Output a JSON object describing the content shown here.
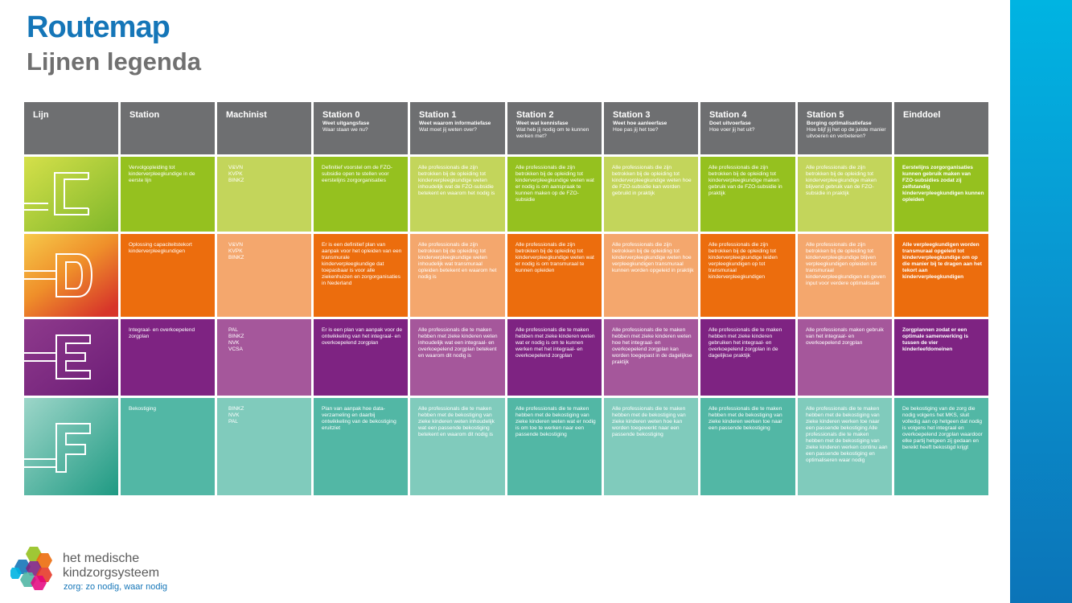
{
  "header": {
    "title": "Routemap",
    "subtitle": "Lijnen legenda"
  },
  "table": {
    "columns": [
      {
        "label": "Lijn"
      },
      {
        "label": "Station"
      },
      {
        "label": "Machinist"
      },
      {
        "label": "Station 0",
        "phase": "Weet uitgangsfase",
        "question": "Waar staan we nu?"
      },
      {
        "label": "Station 1",
        "phase": "Weet waarom informatiefase",
        "question": "Wat moet jij weten over?"
      },
      {
        "label": "Station 2",
        "phase": "Weet wat kennisfase",
        "question": "Wat heb jij nodig om te kunnen werken met?"
      },
      {
        "label": "Station 3",
        "phase": "Weet hoe aanleerfase",
        "question": "Hoe pas jij het toe?"
      },
      {
        "label": "Station 4",
        "phase": "Doet uitvoerfase",
        "question": "Hoe voer jij het uit?"
      },
      {
        "label": "Station 5",
        "phase": "Borging optimalisatiefase",
        "question": "Hoe blijf jij het op de juiste manier uitvoeren en verbeteren?"
      },
      {
        "label": "Einddoel"
      }
    ],
    "rows": [
      {
        "line": "C",
        "colors": {
          "light": "#c3d55b",
          "dark": "#95c11f"
        },
        "station": "Vervolgopleiding tot kinderverpleegkundige in de eerste lijn",
        "machinist": "V&VN\nKVPK\nBINKZ",
        "s0": "Definitief voorstel om de FZO-subsidie open te stellen voor eerstelijns zorgorganisaties",
        "s1": "Alle professionals die zijn betrokken bij de opleiding tot kinderverpleegkundige weten inhoudelijk wat de FZO-subsidie betekent en waarom het nodig is",
        "s2": "Alle professionals die zijn betrokken bij de opleiding tot kinderverpleegkundige weten wat er nodig is om aanspraak te kunnen maken op de FZO-subsidie",
        "s3": "Alle professionals die zijn betrokken bij de opleiding tot kinderverpleegkundige weten hoe de FZO-subsidie kan worden gebruikt in praktijk",
        "s4": "Alle professionals die zijn betrokken bij de opleiding tot kinderverpleegkundige maken gebruik van de FZO-subsidie in praktijk",
        "s5": "Alle professionals die zijn betrokken bij de opleiding tot kinderverpleegkundige maken blijvend gebruik van de FZO-subsidie in praktijk",
        "goal": "Eerstelijns zorgorganisaties kunnen gebruik maken van FZO-subsidies zodat zij zelfstandig kinderverpleegkundigen kunnen opleiden"
      },
      {
        "line": "D",
        "colors": {
          "light": "#f4a76d",
          "dark": "#ec6d0d"
        },
        "station": "Oplossing capaciteitstekort kinderverpleegkundigen",
        "machinist": "V&VN\nKVPK\nBINKZ",
        "s0": "Er is een definitief plan van aanpak voor het opleiden van een transmurale kinderverpleegkundige dat toepasbaar is voor alle ziekenhuizen en zorgorganisaties in Nederland",
        "s1": "Alle professionals die zijn betrokken bij de opleiding tot kinderverpleegkundige weten inhoudelijk wat transmuraal opleiden betekent en waarom het nodig is",
        "s2": "Alle professionals die zijn betrokken bij de opleiding tot kinderverpleegkundige weten wat er nodig is om transmuraal te kunnen opleiden",
        "s3": "Alle professionals die zijn betrokken bij de opleiding tot kinderverpleegkundige weten hoe verpleegkundigen transmuraal kunnen worden opgeleid in praktijk",
        "s4": "Alle professionals die zijn betrokken bij de opleiding tot kinderverpleegkundige leiden verpleegkundigen op tot transmuraal kinderverpleegkundigen",
        "s5": "Alle professionals die zijn betrokken bij de opleiding tot kinderverpleegkundige blijven verpleegkundigen opleiden tot transmuraal kinderverpleegkundigen en geven input voor verdere optimalisatie",
        "goal": "Alle verpleegkundigen worden transmuraal opgeleid tot kinderverpleegkundige om op die manier bij te dragen aan het tekort aan kinderverpleegkundigen"
      },
      {
        "line": "E",
        "colors": {
          "light": "#a5579b",
          "dark": "#7e2382"
        },
        "station": "Integraal- en overkoepelend zorgplan",
        "machinist": "PAL\nBINKZ\nNVK\nVCSA",
        "s0": "Er is een plan van aanpak voor de ontwikkeling van het integraal- en overkoepelend zorgplan",
        "s1": "Alle professionals die te maken hebben met zieke kinderen weten inhoudelijk wat een integraal- en overkoepelend zorgplan betekent en waarom dit nodig is",
        "s2": "Alle professionals die te maken hebben met zieke kinderen weten wat er nodig is om te kunnen werken met het integraal- en overkoepelend zorgplan",
        "s3": "Alle professionals die te maken hebben met zieke kinderen weten hoe het integraal- en overkoepelend zorgplan kan worden toegepast in de dagelijkse praktijk",
        "s4": "Alle professionals die te maken hebben met zieke kinderen gebruiken het integraal- en overkoepelend zorgplan in de dagelijkse praktijk",
        "s5": "Alle professionals maken gebruik van het integraal- en overkoepelend zorgplan",
        "goal": "Zorgplannen zodat er een optimale samenwerking is tussen de vier kinderleefdomeinen"
      },
      {
        "line": "F",
        "colors": {
          "light": "#80cbbc",
          "dark": "#52b7a5"
        },
        "station": "Bekostiging",
        "machinist": "BINKZ\nNVK\nPAL",
        "s0": "Plan van aanpak hoe data-verzameling en daarbij ontwikkeling van de bekostiging eruitziet",
        "s1": "Alle professionals die te maken hebben met de bekostiging van zieke kinderen weten inhoudelijk wat een passende bekostiging betekent en waarom dit nodig is",
        "s2": "Alle professionals die te maken hebben met de bekostiging van zieke kinderen weten wat er nodig is om toe te werken naar een passende bekostiging",
        "s3": "Alle professionals die te maken hebben met de bekostiging van zieke kinderen weten hoe kan worden toegewerkt naar een passende bekostiging",
        "s4": "Alle professionals die te maken hebben met de bekostiging van zieke kinderen werken toe naar een passende bekostiging",
        "s5": "Alle professionals die te maken hebben met de bekostiging van zieke kinderen werken toe naar een passende bekostiging      Alle professionals die te maken hebben met de bekostiging van zieke kinderen werken continu aan een passende bekostiging en optimaliseren waar nodig",
        "goal": "De bekostiging van de zorg die nodig volgens het MKS, sluit volledig aan op hetgeen dat nodig is volgens het integraal en overkoepelend zorgplan waardoor elke partij hetgeen zij gedaan en bereikt heeft bekostigd krijgt"
      }
    ]
  },
  "footer": {
    "logo_line1": "het medische",
    "logo_line2": "kindzorgsysteem",
    "tagline": "zorg: zo nodig, waar nodig"
  }
}
